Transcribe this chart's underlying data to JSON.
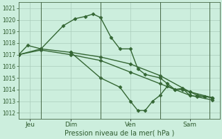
{
  "background_color": "#cceedd",
  "grid_color": "#aaccbb",
  "line_color": "#336633",
  "marker_color": "#336633",
  "title": "Pression niveau de la mer( hPa )",
  "ylim": [
    1011.5,
    1021.5
  ],
  "yticks": [
    1012,
    1013,
    1014,
    1015,
    1016,
    1017,
    1018,
    1019,
    1020,
    1021
  ],
  "xmin": 0,
  "xmax": 13.5,
  "vlines_x": [
    1.5,
    5.5,
    9.5,
    12.8
  ],
  "day_positions": [
    0.75,
    3.5,
    7.5,
    11.5
  ],
  "day_labels": [
    "Jeu",
    "Dim",
    "Ven",
    "Sam"
  ],
  "series1_x": [
    0.0,
    0.6,
    1.5,
    3.0,
    3.8,
    4.5,
    5.0,
    5.5,
    6.2,
    6.8,
    7.5,
    8.0,
    8.5,
    9.5,
    10.0,
    10.5,
    11.0,
    11.5,
    12.0,
    12.5,
    13.0
  ],
  "series1_y": [
    1017.0,
    1017.8,
    1017.5,
    1019.5,
    1020.1,
    1020.3,
    1020.5,
    1020.2,
    1018.5,
    1017.5,
    1017.5,
    1015.8,
    1015.3,
    1015.0,
    1014.5,
    1014.0,
    1014.1,
    1013.5,
    1013.4,
    1013.4,
    1013.3
  ],
  "series2_x": [
    0.0,
    1.5,
    3.5,
    5.5,
    7.5,
    9.5,
    11.5,
    13.0
  ],
  "series2_y": [
    1017.0,
    1017.5,
    1017.2,
    1016.8,
    1016.2,
    1015.2,
    1013.8,
    1013.3
  ],
  "series3_x": [
    0.0,
    1.5,
    3.5,
    5.5,
    7.5,
    9.5,
    11.5,
    13.0
  ],
  "series3_y": [
    1017.0,
    1017.4,
    1017.0,
    1016.5,
    1015.5,
    1014.5,
    1013.5,
    1013.1
  ],
  "series4_x": [
    3.5,
    5.5,
    6.8,
    7.5,
    8.0,
    8.5,
    9.0,
    9.5,
    10.0,
    10.5,
    11.0,
    11.5,
    12.0,
    12.5,
    13.0
  ],
  "series4_y": [
    1017.2,
    1015.0,
    1014.2,
    1013.0,
    1012.2,
    1012.2,
    1013.0,
    1013.5,
    1014.3,
    1014.0,
    1014.0,
    1013.8,
    1013.5,
    1013.4,
    1013.3
  ]
}
